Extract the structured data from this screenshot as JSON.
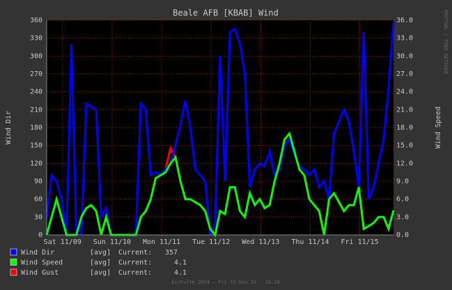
{
  "chart_data": {
    "type": "line",
    "title": "Beale AFB [KBAB] Wind",
    "ylabel": "Wind Dir",
    "y2label": "Wind Speed",
    "watermark": "RRDTOOL / TOBI OETIKER",
    "footer": "AirFuffm 2024 — Fri 15 Nov 24 - 16:20",
    "legend_stat": "[avg]",
    "legend_current": "Current:",
    "grid": true,
    "xlim": [
      0,
      7
    ],
    "xticks": [
      {
        "value": 0.32,
        "label": "Sat 11/09"
      },
      {
        "value": 1.32,
        "label": "Sun 11/10"
      },
      {
        "value": 2.32,
        "label": "Mon 11/11"
      },
      {
        "value": 3.32,
        "label": "Tue 11/12"
      },
      {
        "value": 4.32,
        "label": "Wed 11/13"
      },
      {
        "value": 5.32,
        "label": "Thu 11/14"
      },
      {
        "value": 6.32,
        "label": "Fri 11/15"
      }
    ],
    "ylim": [
      0,
      360
    ],
    "yticks": [
      0,
      30,
      60,
      90,
      120,
      150,
      180,
      210,
      240,
      270,
      300,
      330,
      360
    ],
    "y2lim": [
      0,
      36
    ],
    "y2ticks": [
      {
        "value": 0,
        "label": "0.0"
      },
      {
        "value": 3,
        "label": "3.0"
      },
      {
        "value": 6,
        "label": "6.0"
      },
      {
        "value": 9,
        "label": "9.0"
      },
      {
        "value": 12,
        "label": "12.0"
      },
      {
        "value": 15,
        "label": "15.0"
      },
      {
        "value": 18,
        "label": "18.0"
      },
      {
        "value": 21,
        "label": "21.0"
      },
      {
        "value": 24,
        "label": "24.0"
      },
      {
        "value": 27,
        "label": "27.0"
      },
      {
        "value": 30,
        "label": "30.0"
      },
      {
        "value": 33,
        "label": "33.0"
      },
      {
        "value": 36,
        "label": "36.0"
      }
    ],
    "x": [
      0,
      0.1,
      0.2,
      0.3,
      0.4,
      0.5,
      0.6,
      0.7,
      0.8,
      0.9,
      1,
      1.1,
      1.2,
      1.3,
      1.4,
      1.5,
      1.6,
      1.7,
      1.8,
      1.9,
      2,
      2.1,
      2.2,
      2.3,
      2.4,
      2.5,
      2.6,
      2.7,
      2.8,
      2.9,
      3,
      3.1,
      3.2,
      3.3,
      3.4,
      3.5,
      3.6,
      3.7,
      3.8,
      3.9,
      4,
      4.1,
      4.2,
      4.3,
      4.4,
      4.5,
      4.6,
      4.7,
      4.8,
      4.9,
      5,
      5.1,
      5.2,
      5.3,
      5.4,
      5.5,
      5.6,
      5.7,
      5.8,
      5.9,
      6,
      6.1,
      6.2,
      6.3,
      6.4,
      6.5,
      6.6,
      6.7,
      6.8,
      6.9,
      7
    ],
    "series": [
      {
        "name": "Wind Dir",
        "color": "#0000ff",
        "current": 357,
        "values": [
          30,
          100,
          90,
          60,
          0,
          320,
          0,
          0,
          220,
          215,
          210,
          30,
          45,
          0,
          0,
          0,
          0,
          0,
          0,
          220,
          210,
          100,
          105,
          100,
          110,
          120,
          150,
          185,
          225,
          180,
          110,
          100,
          90,
          0,
          20,
          300,
          90,
          340,
          345,
          320,
          270,
          80,
          110,
          120,
          115,
          140,
          100,
          110,
          150,
          160,
          135,
          115,
          110,
          100,
          110,
          80,
          90,
          60,
          170,
          190,
          210,
          190,
          140,
          80,
          340,
          60,
          80,
          120,
          160,
          245,
          357
        ]
      },
      {
        "name": "Wind Speed",
        "color": "#00ff00",
        "current": 4.1,
        "axis": "y2",
        "values": [
          0,
          3,
          6,
          3,
          0,
          0,
          0,
          3,
          4.5,
          5,
          4,
          0,
          3,
          0,
          0,
          0,
          0,
          0,
          0,
          3,
          4,
          6,
          9.5,
          10,
          10.5,
          12,
          13,
          9,
          6,
          6,
          5.5,
          5,
          4,
          1,
          0,
          4,
          3.5,
          8,
          8,
          4,
          3,
          7,
          5,
          6,
          4.5,
          5,
          9,
          12,
          16,
          17,
          14,
          11,
          10,
          6,
          5,
          4,
          0,
          6,
          7,
          5.5,
          4,
          5,
          5,
          8,
          1,
          1.5,
          2,
          3,
          3,
          1,
          4.1
        ]
      },
      {
        "name": "Wind Gust",
        "color": "#ff0000",
        "current": 4.1,
        "axis": "y2",
        "values": [
          0,
          3,
          6,
          3,
          0,
          0,
          0,
          3,
          4.5,
          5,
          4,
          0,
          3,
          0,
          0,
          0,
          0,
          0,
          0,
          3,
          4,
          6,
          9.5,
          10,
          11,
          14.5,
          13,
          9,
          6,
          6,
          5.5,
          5,
          4,
          1,
          0,
          4,
          3.5,
          8,
          8,
          4,
          3,
          7,
          5,
          6,
          4.5,
          5,
          9,
          12,
          16,
          17,
          14,
          11,
          10,
          6,
          5,
          4,
          0,
          6,
          7,
          5.5,
          4,
          5,
          5,
          8,
          1,
          1.5,
          2,
          3,
          3,
          1,
          4.1
        ]
      }
    ]
  }
}
